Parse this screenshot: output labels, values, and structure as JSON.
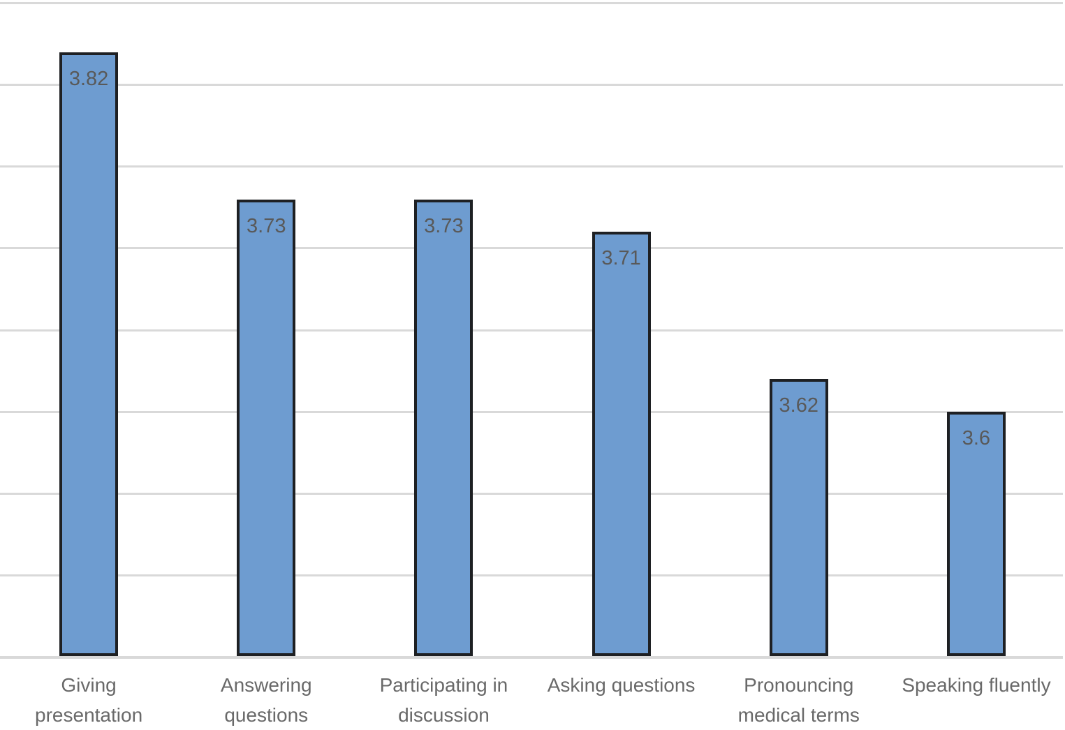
{
  "chart_data": {
    "type": "bar",
    "title": "",
    "xlabel": "",
    "ylabel": "",
    "categories": [
      "Giving presentation",
      "Answering questions",
      "Participating in discussion",
      "Asking questions",
      "Pronouncing medical terms",
      "Speaking fluently"
    ],
    "label_lines": [
      [
        "Giving",
        "presentation"
      ],
      [
        "Answering",
        "questions"
      ],
      [
        "Participating in",
        "discussion"
      ],
      [
        "Asking questions"
      ],
      [
        "Pronouncing",
        "medical terms"
      ],
      [
        "Speaking fluently"
      ]
    ],
    "values": [
      3.82,
      3.73,
      3.73,
      3.71,
      3.62,
      3.6
    ],
    "data_labels": [
      "3.82",
      "3.73",
      "3.73",
      "3.71",
      "3.62",
      "3.6"
    ],
    "ylim": [
      3.45,
      3.85
    ],
    "gridline_step": 0.05,
    "grid": true,
    "legend": false,
    "y_tick_labels_visible": false,
    "colors": {
      "background": "#ffffff",
      "bar_fill": "#6e9cd0",
      "bar_border": "#1e2023",
      "gridline": "#d9d9d9",
      "axis_line": "#d9d9d9",
      "data_label": "#595959",
      "category_label": "#696969"
    }
  }
}
